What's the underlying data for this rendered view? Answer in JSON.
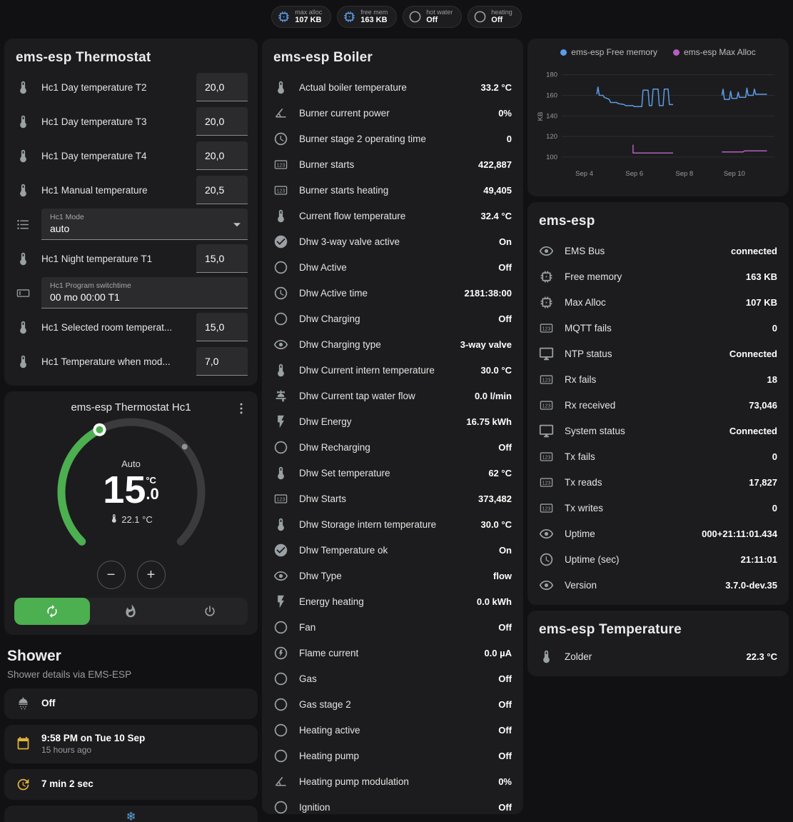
{
  "badges": [
    {
      "icon": "memory",
      "icon_color": "#5c9ce6",
      "label": "max alloc",
      "value": "107 KB"
    },
    {
      "icon": "memory",
      "icon_color": "#5c9ce6",
      "label": "free mem",
      "value": "163 KB"
    },
    {
      "icon": "circle",
      "icon_color": "#9da3a6",
      "label": "hot water",
      "value": "Off"
    },
    {
      "icon": "circle",
      "icon_color": "#9da3a6",
      "label": "heating",
      "value": "Off"
    }
  ],
  "thermostat_card": {
    "title": "ems-esp Thermostat",
    "rows": [
      {
        "type": "number",
        "icon": "thermometer",
        "label": "Hc1 Day temperature T2",
        "value": "20,0"
      },
      {
        "type": "number",
        "icon": "thermometer",
        "label": "Hc1 Day temperature T3",
        "value": "20,0"
      },
      {
        "type": "number",
        "icon": "thermometer",
        "label": "Hc1 Day temperature T4",
        "value": "20,0"
      },
      {
        "type": "number",
        "icon": "thermometer",
        "label": "Hc1 Manual temperature",
        "value": "20,5"
      },
      {
        "type": "select",
        "icon": "list",
        "label": "Hc1 Mode",
        "value": "auto"
      },
      {
        "type": "number",
        "icon": "thermometer",
        "label": "Hc1 Night temperature T1",
        "value": "15,0"
      },
      {
        "type": "text",
        "icon": "textbox",
        "label": "Hc1 Program switchtime",
        "value": "00 mo 00:00 T1"
      },
      {
        "type": "number",
        "icon": "thermometer",
        "label": "Hc1 Selected room temperat...",
        "value": "15,0"
      },
      {
        "type": "number",
        "icon": "thermometer",
        "label": "Hc1 Temperature when mod...",
        "value": "7,0"
      }
    ]
  },
  "dial_card": {
    "title": "ems-esp Thermostat Hc1",
    "mode_label": "Auto",
    "target_int": "15",
    "target_frac": ".0",
    "unit": "°C",
    "current_label": "22.1 °C",
    "target": 15.0,
    "current": 22.1,
    "min": 5,
    "max": 30,
    "accent_color": "#4caf50",
    "modes": [
      {
        "name": "auto",
        "icon": "autorenew",
        "active": true
      },
      {
        "name": "heat",
        "icon": "fire",
        "active": false
      },
      {
        "name": "off",
        "icon": "power",
        "active": false
      }
    ]
  },
  "shower": {
    "title": "Shower",
    "subtitle": "Shower details via EMS-ESP",
    "items": [
      {
        "icon": "shower",
        "icon_color": "#9aa0a3",
        "primary": "Off",
        "secondary": ""
      },
      {
        "icon": "calendar",
        "icon_color": "#dfb23a",
        "primary": "9:58 PM on Tue 10 Sep",
        "secondary": "15 hours ago"
      },
      {
        "icon": "update",
        "icon_color": "#dfb23a",
        "primary": "7 min 2 sec",
        "secondary": ""
      }
    ]
  },
  "bottom_partial": {
    "icon": "snowflake",
    "icon_color": "#58a6dd"
  },
  "boiler_card": {
    "title": "ems-esp Boiler",
    "rows": [
      {
        "icon": "thermometer",
        "label": "Actual boiler temperature",
        "value": "33.2 °C"
      },
      {
        "icon": "angle",
        "label": "Burner current power",
        "value": "0%"
      },
      {
        "icon": "clock",
        "label": "Burner stage 2 operating time",
        "value": "0"
      },
      {
        "icon": "counter",
        "label": "Burner starts",
        "value": "422,887"
      },
      {
        "icon": "counter",
        "label": "Burner starts heating",
        "value": "49,405"
      },
      {
        "icon": "thermometer",
        "label": "Current flow temperature",
        "value": "32.4 °C"
      },
      {
        "icon": "check-circle",
        "label": "Dhw 3-way valve active",
        "value": "On"
      },
      {
        "icon": "circle",
        "label": "Dhw Active",
        "value": "Off"
      },
      {
        "icon": "clock",
        "label": "Dhw Active time",
        "value": "2181:38:00"
      },
      {
        "icon": "circle",
        "label": "Dhw Charging",
        "value": "Off"
      },
      {
        "icon": "eye",
        "label": "Dhw Charging type",
        "value": "3-way valve"
      },
      {
        "icon": "thermometer",
        "label": "Dhw Current intern temperature",
        "value": "30.0 °C"
      },
      {
        "icon": "faucet",
        "label": "Dhw Current tap water flow",
        "value": "0.0 l/min"
      },
      {
        "icon": "flash",
        "label": "Dhw Energy",
        "value": "16.75 kWh"
      },
      {
        "icon": "circle",
        "label": "Dhw Recharging",
        "value": "Off"
      },
      {
        "icon": "thermometer",
        "label": "Dhw Set temperature",
        "value": "62 °C"
      },
      {
        "icon": "counter",
        "label": "Dhw Starts",
        "value": "373,482"
      },
      {
        "icon": "thermometer",
        "label": "Dhw Storage intern temperature",
        "value": "30.0 °C"
      },
      {
        "icon": "check-circle",
        "label": "Dhw Temperature ok",
        "value": "On"
      },
      {
        "icon": "eye",
        "label": "Dhw Type",
        "value": "flow"
      },
      {
        "icon": "flash",
        "label": "Energy heating",
        "value": "0.0 kWh"
      },
      {
        "icon": "circle",
        "label": "Fan",
        "value": "Off"
      },
      {
        "icon": "flash-circle",
        "label": "Flame current",
        "value": "0.0 µA"
      },
      {
        "icon": "circle",
        "label": "Gas",
        "value": "Off"
      },
      {
        "icon": "circle",
        "label": "Gas stage 2",
        "value": "Off"
      },
      {
        "icon": "circle",
        "label": "Heating active",
        "value": "Off"
      },
      {
        "icon": "circle",
        "label": "Heating pump",
        "value": "Off"
      },
      {
        "icon": "angle",
        "label": "Heating pump modulation",
        "value": "0%"
      },
      {
        "icon": "circle",
        "label": "Ignition",
        "value": "Off"
      }
    ]
  },
  "emsesp_card": {
    "title": "ems-esp",
    "rows": [
      {
        "icon": "eye",
        "label": "EMS Bus",
        "value": "connected"
      },
      {
        "icon": "memory",
        "label": "Free memory",
        "value": "163 KB"
      },
      {
        "icon": "memory",
        "label": "Max Alloc",
        "value": "107 KB"
      },
      {
        "icon": "counter",
        "label": "MQTT fails",
        "value": "0"
      },
      {
        "icon": "monitor",
        "label": "NTP status",
        "value": "Connected"
      },
      {
        "icon": "counter",
        "label": "Rx fails",
        "value": "18"
      },
      {
        "icon": "counter",
        "label": "Rx received",
        "value": "73,046"
      },
      {
        "icon": "monitor",
        "label": "System status",
        "value": "Connected"
      },
      {
        "icon": "counter",
        "label": "Tx fails",
        "value": "0"
      },
      {
        "icon": "counter",
        "label": "Tx reads",
        "value": "17,827"
      },
      {
        "icon": "counter",
        "label": "Tx writes",
        "value": "0"
      },
      {
        "icon": "eye",
        "label": "Uptime",
        "value": "000+21:11:01.434"
      },
      {
        "icon": "clock",
        "label": "Uptime (sec)",
        "value": "21:11:01"
      },
      {
        "icon": "eye",
        "label": "Version",
        "value": "3.7.0-dev.35"
      }
    ]
  },
  "temp_card": {
    "title": "ems-esp Temperature",
    "rows": [
      {
        "icon": "thermometer",
        "label": "Zolder",
        "value": "22.3 °C"
      }
    ]
  },
  "chart_data": {
    "type": "line",
    "ylabel": "KB",
    "grid": "horizontal",
    "legend_position": "top",
    "y_ticks": [
      100,
      120,
      140,
      160,
      180
    ],
    "y_range": [
      93,
      186
    ],
    "x_ticks": [
      "Sep 4",
      "Sep 6",
      "Sep 8",
      "Sep 10"
    ],
    "x_tick_values": [
      4,
      6,
      8,
      10
    ],
    "x_range": [
      3.1,
      11.6
    ],
    "series": [
      {
        "name": "ems-esp Free memory",
        "color": "#5c9ce6",
        "segments": [
          [
            [
              4.5,
              161
            ],
            [
              4.55,
              168
            ],
            [
              4.6,
              160
            ],
            [
              4.75,
              160
            ],
            [
              4.8,
              158
            ],
            [
              5.0,
              156
            ],
            [
              5.05,
              153
            ],
            [
              5.3,
              153
            ],
            [
              5.35,
              152
            ],
            [
              5.6,
              151
            ],
            [
              5.65,
              150
            ],
            [
              5.95,
              150
            ],
            [
              6.0,
              149
            ],
            [
              6.3,
              149
            ],
            [
              6.35,
              165
            ],
            [
              6.55,
              165
            ],
            [
              6.6,
              150
            ],
            [
              6.7,
              150
            ],
            [
              6.75,
              166
            ],
            [
              6.95,
              166
            ],
            [
              7.0,
              150
            ],
            [
              7.15,
              150
            ],
            [
              7.2,
              166
            ],
            [
              7.35,
              166
            ],
            [
              7.4,
              151
            ],
            [
              7.55,
              151
            ]
          ],
          [
            [
              9.5,
              160
            ],
            [
              9.55,
              166
            ],
            [
              9.6,
              156
            ],
            [
              9.8,
              156
            ],
            [
              9.85,
              164
            ],
            [
              9.9,
              157
            ],
            [
              10.1,
              157
            ],
            [
              10.15,
              163
            ],
            [
              10.2,
              158
            ],
            [
              10.45,
              158
            ],
            [
              10.5,
              167
            ],
            [
              10.55,
              160
            ],
            [
              10.75,
              160
            ],
            [
              10.8,
              166
            ],
            [
              10.85,
              161
            ],
            [
              11.3,
              161
            ]
          ]
        ]
      },
      {
        "name": "ems-esp Max Alloc",
        "color": "#b45fc0",
        "segments": [
          [
            [
              5.95,
              112
            ],
            [
              5.95,
              104
            ],
            [
              7.55,
              104
            ]
          ],
          [
            [
              9.5,
              105
            ],
            [
              10.35,
              105
            ],
            [
              10.4,
              106
            ],
            [
              11.3,
              106
            ]
          ]
        ]
      }
    ]
  }
}
